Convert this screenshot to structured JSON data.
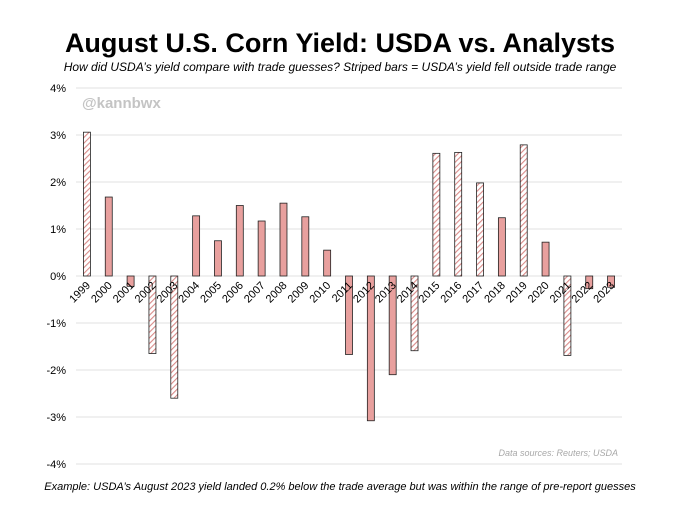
{
  "chart_data": {
    "type": "bar",
    "title": "August U.S. Corn Yield: USDA vs. Analysts",
    "subtitle": "How did USDA’s yield compare with trade guesses? Striped bars = USDA’s yield fell outside trade range",
    "watermark": "@kannbwx",
    "source": "Data sources: Reuters; USDA",
    "footnote": "Example: USDA’s August 2023 yield landed 0.2% below the trade average but was within the range of pre-report guesses",
    "xlabel": "",
    "ylabel": "",
    "ylim": [
      -4,
      4
    ],
    "yticks": [
      4,
      3,
      2,
      1,
      0,
      -1,
      -2,
      -3,
      -4
    ],
    "ytick_labels": [
      "4%",
      "3%",
      "2%",
      "1%",
      "0%",
      "-1%",
      "-2%",
      "-3%",
      "-4%"
    ],
    "grid": true,
    "categories": [
      "1999",
      "2000",
      "2001",
      "2002",
      "2003",
      "2004",
      "2005",
      "2006",
      "2007",
      "2008",
      "2009",
      "2010",
      "2011",
      "2012",
      "2013",
      "2014",
      "2015",
      "2016",
      "2017",
      "2018",
      "2019",
      "2020",
      "2021",
      "2022",
      "2023"
    ],
    "values": [
      3.06,
      1.68,
      -0.22,
      -1.65,
      -2.6,
      1.28,
      0.75,
      1.5,
      1.17,
      1.55,
      1.26,
      0.55,
      -1.67,
      -3.08,
      -2.1,
      -1.59,
      2.61,
      2.63,
      1.98,
      1.24,
      2.79,
      0.72,
      -1.69,
      -0.27,
      -0.24
    ],
    "outside_range": [
      true,
      false,
      false,
      true,
      true,
      false,
      false,
      false,
      false,
      false,
      false,
      false,
      false,
      false,
      false,
      true,
      true,
      true,
      true,
      false,
      true,
      false,
      true,
      false,
      false
    ],
    "colors": {
      "bar_fill": "#e8a09e",
      "bar_stroke": "#222222",
      "stripe": "#d98a88",
      "grid": "#e2e2e2"
    }
  }
}
